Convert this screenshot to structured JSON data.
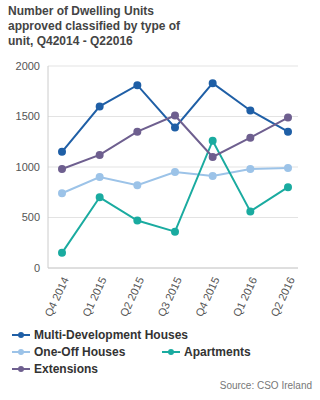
{
  "chart_data": {
    "type": "line",
    "title": "Number of Dwelling Units approved classified by type of unit, Q42014 - Q22016",
    "source": "Source: CSO Ireland",
    "categories": [
      "Q4 2014",
      "Q1 2015",
      "Q2 2015",
      "Q3 2015",
      "Q4 2015",
      "Q1 2016",
      "Q2 2016"
    ],
    "series": [
      {
        "name": "Multi-Development Houses",
        "color": "#1f5fa6",
        "values": [
          1150,
          1600,
          1810,
          1390,
          1830,
          1560,
          1350
        ]
      },
      {
        "name": "One-Off Houses",
        "color": "#9cc3e8",
        "values": [
          740,
          900,
          820,
          950,
          910,
          980,
          990
        ]
      },
      {
        "name": "Apartments",
        "color": "#1aaba0",
        "values": [
          150,
          700,
          470,
          360,
          1260,
          560,
          800
        ]
      },
      {
        "name": "Extensions",
        "color": "#6e5f8f",
        "values": [
          980,
          1120,
          1350,
          1510,
          1100,
          1290,
          1490
        ]
      }
    ],
    "ylim": [
      0,
      2000
    ],
    "yticks": [
      0,
      500,
      1000,
      1500,
      2000
    ],
    "grid": true,
    "marker": "circle",
    "legend": "bottom"
  }
}
